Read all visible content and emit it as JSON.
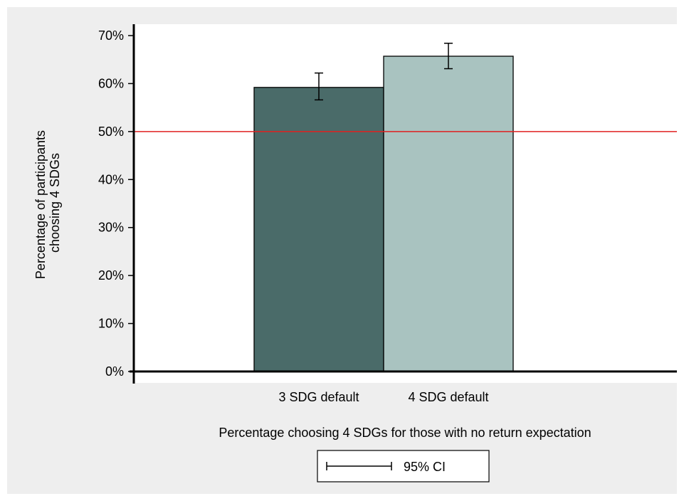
{
  "chart_data": {
    "type": "bar",
    "categories": [
      "3 SDG default",
      "4 SDG default"
    ],
    "values": [
      59.2,
      65.7
    ],
    "ci_lower": [
      56.6,
      63.1
    ],
    "ci_upper": [
      62.2,
      68.4
    ],
    "ylim": [
      0,
      70
    ],
    "yticks": [
      0,
      10,
      20,
      30,
      40,
      50,
      60,
      70
    ],
    "ytick_labels": [
      "0%",
      "10%",
      "20%",
      "30%",
      "40%",
      "50%",
      "60%",
      "70%"
    ],
    "ylabel_line1": "Percentage of participants",
    "ylabel_line2": "choosing 4 SDGs",
    "xlabel": "Percentage choosing 4 SDGs for those with no return expectation",
    "reference_line": 50,
    "legend": {
      "label": "95% CI",
      "position": "bottom-center"
    },
    "grid": false,
    "colors": {
      "bar_1": "#4a6b69",
      "bar_2": "#a9c3c0",
      "reference_line": "#e02020",
      "background": "#eeeeee",
      "plot_area": "#ffffff"
    }
  }
}
